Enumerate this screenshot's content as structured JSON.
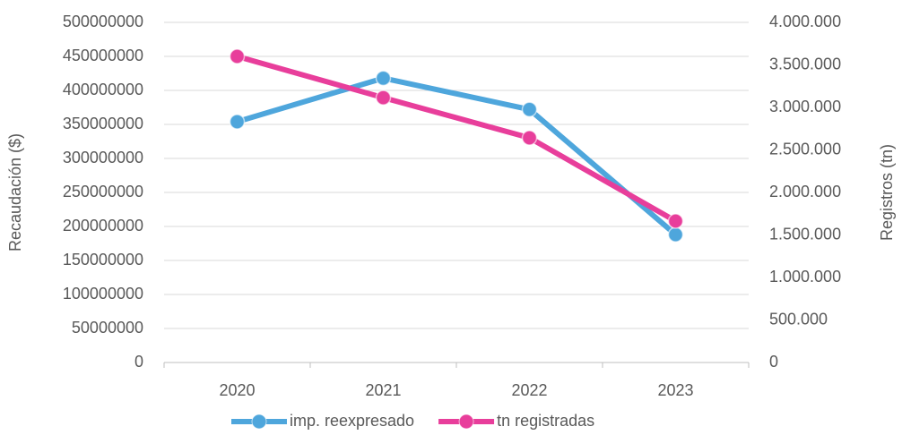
{
  "chart_data": {
    "type": "line",
    "y_label": "Recaudación ($)",
    "y2_label": "Registros (tn)",
    "categories": [
      "2020",
      "2021",
      "2022",
      "2023"
    ],
    "series": [
      {
        "name": "imp. reexpresado",
        "color": "#4ea6dc",
        "values": [
          354000000,
          418000000,
          372000000,
          188000000
        ]
      },
      {
        "name": "tn registradas",
        "color": "#e83e9b",
        "axis": "y2",
        "values": [
          3600000,
          3115000,
          2642000,
          1663000
        ]
      }
    ],
    "ylim": [
      0,
      500000000
    ],
    "yticks": [
      0,
      50000000,
      100000000,
      150000000,
      200000000,
      250000000,
      300000000,
      350000000,
      400000000,
      450000000,
      500000000
    ],
    "y2lim": [
      0,
      4000000
    ],
    "y2ticks": [
      0,
      {
        "value": 500000,
        "label": "500.000"
      },
      {
        "value": 1000000,
        "label": "1.000.000"
      },
      {
        "value": 1500000,
        "label": "1.500.000"
      },
      {
        "value": 2000000,
        "label": "2.000.000"
      },
      {
        "value": 2500000,
        "label": "2.500.000"
      },
      {
        "value": 3000000,
        "label": "3.000.000"
      },
      {
        "value": 3500000,
        "label": "3.500.000"
      },
      {
        "value": 4000000,
        "label": "4.000.000"
      }
    ],
    "grid": true,
    "legend": "bottom"
  }
}
